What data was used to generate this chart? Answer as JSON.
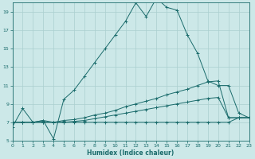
{
  "xlabel": "Humidex (Indice chaleur)",
  "bg_color": "#cce8e8",
  "line_color": "#1a6b6b",
  "grid_color": "#aacfcf",
  "series1_y": [
    6.5,
    8.5,
    7.0,
    7.2,
    5.2,
    9.5,
    10.5,
    12.0,
    13.5,
    15.0,
    16.5,
    18.0,
    20.0,
    18.5,
    20.5,
    19.5,
    19.2,
    16.5,
    14.5,
    11.5,
    11.0,
    11.0,
    8.0,
    7.5
  ],
  "series2_y": [
    7.0,
    7.0,
    7.0,
    7.2,
    7.0,
    7.2,
    7.3,
    7.5,
    7.8,
    8.0,
    8.3,
    8.7,
    9.0,
    9.3,
    9.6,
    10.0,
    10.3,
    10.6,
    11.0,
    11.4,
    11.5,
    7.5,
    7.5,
    7.5
  ],
  "series3_y": [
    7.0,
    7.0,
    7.0,
    7.0,
    7.0,
    7.0,
    7.1,
    7.2,
    7.4,
    7.6,
    7.8,
    8.0,
    8.2,
    8.4,
    8.6,
    8.8,
    9.0,
    9.2,
    9.4,
    9.6,
    9.7,
    7.5,
    7.5,
    7.5
  ],
  "series4_y": [
    7.0,
    7.0,
    7.0,
    7.0,
    7.0,
    7.0,
    7.0,
    7.0,
    7.0,
    7.0,
    7.0,
    7.0,
    7.0,
    7.0,
    7.0,
    7.0,
    7.0,
    7.0,
    7.0,
    7.0,
    7.0,
    7.0,
    7.5,
    7.5
  ],
  "xlim": [
    0,
    23
  ],
  "ylim": [
    5,
    20
  ],
  "yticks": [
    5,
    7,
    9,
    11,
    13,
    15,
    17,
    19
  ],
  "xticks": [
    0,
    1,
    2,
    3,
    4,
    5,
    6,
    7,
    8,
    9,
    10,
    11,
    12,
    13,
    14,
    15,
    16,
    17,
    18,
    19,
    20,
    21,
    22,
    23
  ]
}
